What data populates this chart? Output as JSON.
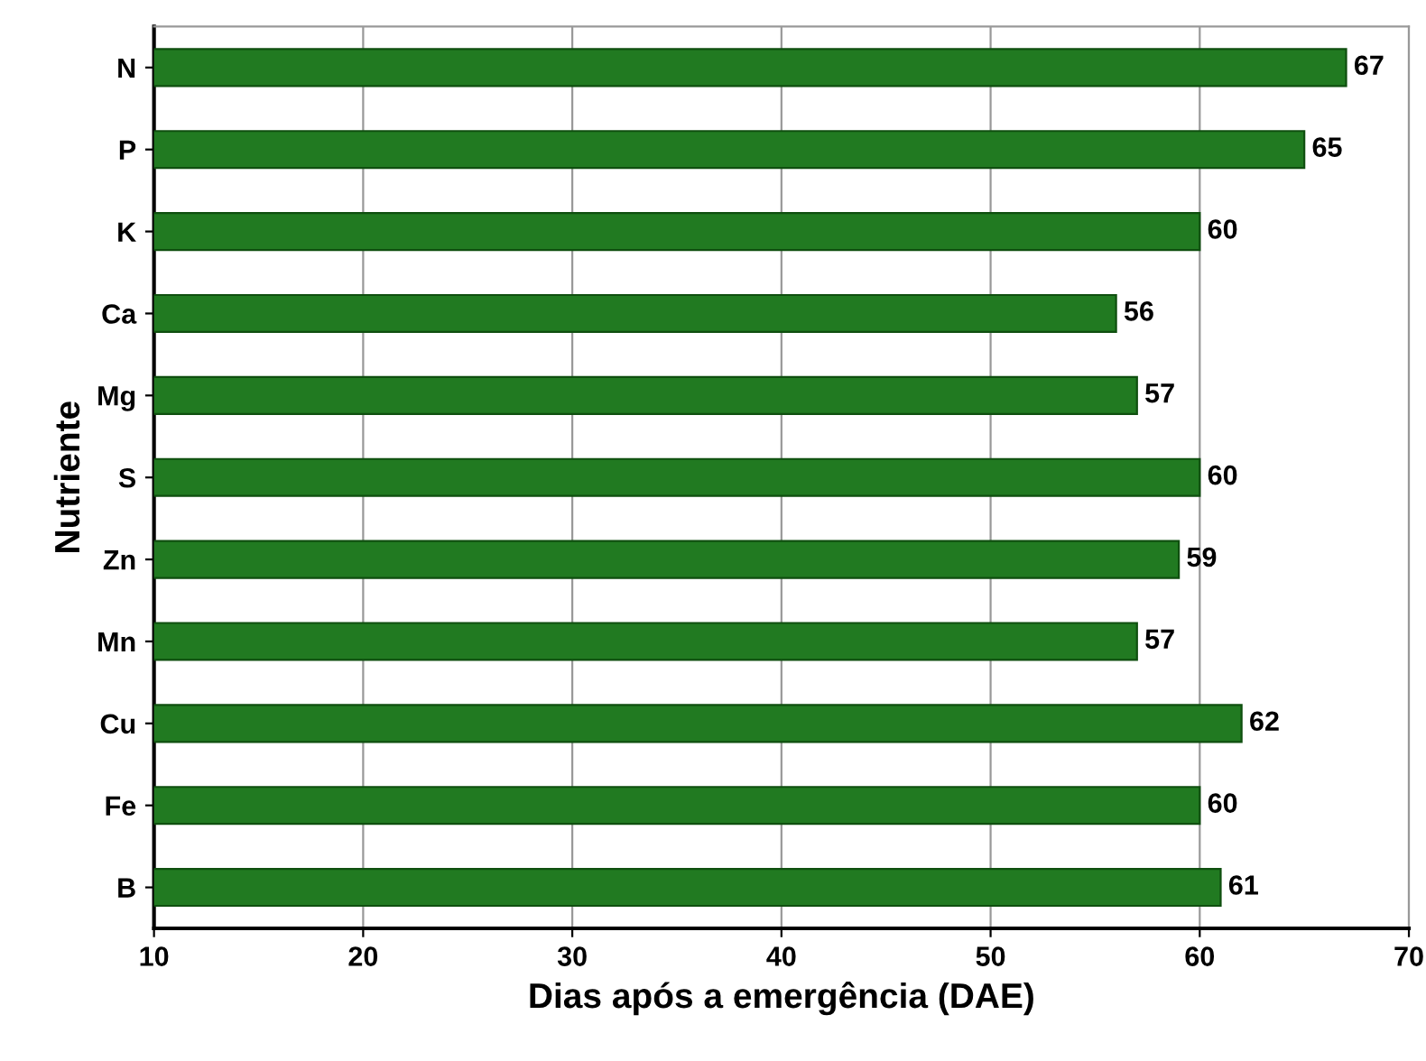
{
  "chart_data": {
    "type": "bar",
    "orientation": "horizontal",
    "xlabel": "Dias após a emergência (DAE)",
    "ylabel": "Nutriente",
    "categories": [
      "N",
      "P",
      "K",
      "Ca",
      "Mg",
      "S",
      "Zn",
      "Mn",
      "Cu",
      "Fe",
      "B"
    ],
    "values": [
      67,
      65,
      60,
      56,
      57,
      60,
      59,
      57,
      62,
      60,
      61
    ],
    "color": "#217a21",
    "xlim": [
      10,
      70
    ],
    "xticks": [
      10,
      20,
      30,
      40,
      50,
      60,
      70
    ],
    "grid": "x",
    "data_labels": true
  }
}
